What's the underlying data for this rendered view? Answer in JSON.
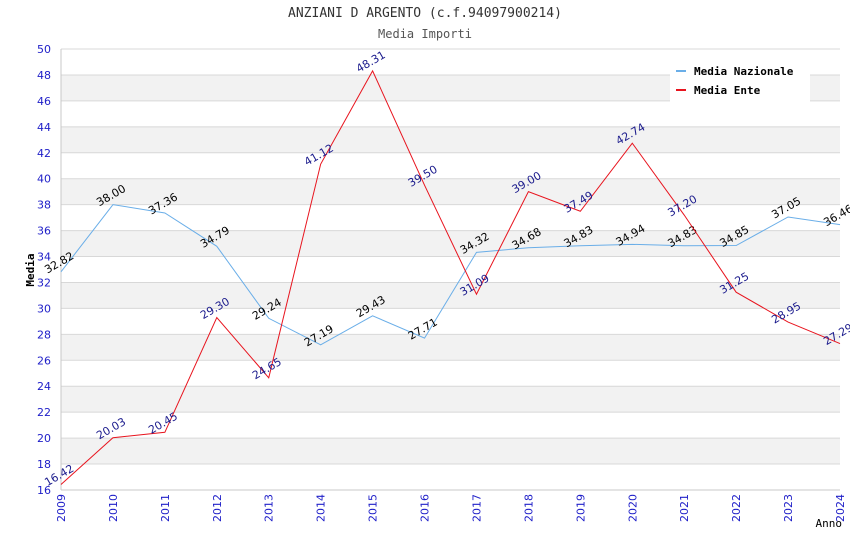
{
  "chart_data": {
    "type": "line",
    "title": "ANZIANI D ARGENTO (c.f.94097900214)",
    "subtitle": "Media Importi",
    "xlabel": "Anno",
    "ylabel": "Media",
    "ylim": [
      16,
      50
    ],
    "ytick_step": 2,
    "grid": true,
    "legend_position": "top-right",
    "x": [
      "2009",
      "2010",
      "2011",
      "2012",
      "2013",
      "2014",
      "2015",
      "2016",
      "2017",
      "2018",
      "2019",
      "2020",
      "2021",
      "2022",
      "2023",
      "2024"
    ],
    "series": [
      {
        "name": "Media Nazionale",
        "color": "#6aaee8",
        "label_color": "#000000",
        "values": [
          32.82,
          38.0,
          37.36,
          34.79,
          29.24,
          27.19,
          29.43,
          27.71,
          34.32,
          34.68,
          34.83,
          34.94,
          34.83,
          34.85,
          37.05,
          36.46
        ]
      },
      {
        "name": "Media Ente",
        "color": "#e8141e",
        "label_color": "#1a1a8c",
        "values": [
          16.42,
          20.03,
          20.45,
          29.3,
          24.65,
          41.12,
          48.31,
          39.5,
          31.09,
          39.0,
          37.49,
          42.74,
          37.2,
          31.25,
          28.95,
          27.29
        ]
      }
    ]
  },
  "colors": {
    "axis_tick_labels": "#1e1ec8",
    "band": "#f2f2f2",
    "grid": "#d8d8d8"
  }
}
